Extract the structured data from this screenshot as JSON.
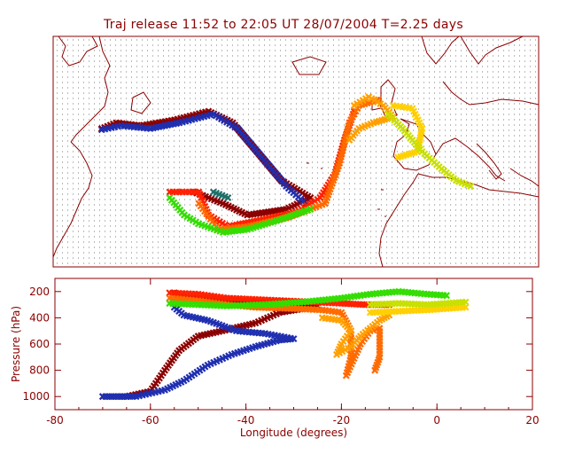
{
  "title": "Traj release 11:52 to 22:05 UT 28/07/2004     T=2.25 days",
  "chart_data": [
    {
      "type": "map",
      "title": "Traj release 11:52 to 22:05 UT 28/07/2004     T=2.25 days",
      "lon_range": [
        -80,
        20
      ],
      "grid": "dotted",
      "frame_color": "#8b0000",
      "coast_color": "#8b0000",
      "trajectories": [
        {
          "color": "#8b0000",
          "points": [
            [
              -70,
              44
            ],
            [
              -67,
              45
            ],
            [
              -62,
              44.5
            ],
            [
              -55,
              45.5
            ],
            [
              -48,
              47
            ],
            [
              -43,
              45
            ],
            [
              -38,
              40
            ],
            [
              -33,
              35
            ],
            [
              -27,
              32
            ],
            [
              -32,
              30
            ],
            [
              -40,
              29
            ],
            [
              -45,
              31
            ],
            [
              -51,
              33
            ]
          ]
        },
        {
          "color": "#1f2fb0",
          "points": [
            [
              -70,
              43.8
            ],
            [
              -66,
              44.5
            ],
            [
              -60,
              44
            ],
            [
              -54,
              45
            ],
            [
              -47,
              46.5
            ],
            [
              -42,
              44
            ],
            [
              -37,
              39
            ],
            [
              -32,
              34
            ],
            [
              -28,
              31
            ]
          ]
        },
        {
          "color": "#ff2000",
          "points": [
            [
              -56,
              33
            ],
            [
              -50,
              33
            ],
            [
              -48,
              29
            ],
            [
              -44,
              27
            ],
            [
              -38,
              28
            ],
            [
              -30,
              29.5
            ],
            [
              -25,
              32
            ],
            [
              -22,
              36
            ],
            [
              -20,
              42
            ],
            [
              -18,
              47
            ]
          ]
        },
        {
          "color": "#ff6a00",
          "points": [
            [
              -50,
              31
            ],
            [
              -46,
              26.5
            ],
            [
              -40,
              27
            ],
            [
              -32,
              28.5
            ],
            [
              -24,
              31
            ],
            [
              -21,
              38
            ],
            [
              -19,
              45
            ],
            [
              -17,
              48
            ],
            [
              -13,
              49
            ]
          ]
        },
        {
          "color": "#ffa000",
          "points": [
            [
              -18,
              48
            ],
            [
              -15,
              49.5
            ],
            [
              -12,
              48
            ],
            [
              -10,
              46
            ],
            [
              -14,
              45
            ],
            [
              -17,
              44
            ],
            [
              -19,
              42
            ]
          ]
        },
        {
          "color": "#ffd000",
          "points": [
            [
              -10,
              48
            ],
            [
              -6,
              47.5
            ],
            [
              -4,
              44
            ],
            [
              -5,
              40
            ],
            [
              -9,
              39
            ]
          ]
        },
        {
          "color": "#c8e000",
          "points": [
            [
              -11,
              46.5
            ],
            [
              -8,
              44
            ],
            [
              -4,
              40
            ],
            [
              0,
              37
            ],
            [
              3,
              35
            ],
            [
              6,
              34
            ]
          ]
        },
        {
          "color": "#33dd00",
          "points": [
            [
              -56,
              32
            ],
            [
              -53,
              29
            ],
            [
              -50,
              27.5
            ],
            [
              -45,
              26
            ],
            [
              -40,
              26.5
            ],
            [
              -34,
              28
            ],
            [
              -27,
              30
            ]
          ]
        },
        {
          "color": "#20706a",
          "points": [
            [
              -47,
              33
            ],
            [
              -44,
              32
            ]
          ]
        }
      ]
    },
    {
      "type": "scatter",
      "xlabel": "Longitude  (degrees)",
      "ylabel": "Pressure  (hPa)",
      "xlim": [
        -80,
        20
      ],
      "ylim": [
        1100,
        100
      ],
      "xticks": [
        -80,
        -60,
        -40,
        -20,
        0,
        20
      ],
      "yticks": [
        200,
        400,
        600,
        800,
        1000
      ],
      "series": [
        {
          "color": "#8b0000",
          "points": [
            [
              -70,
              1000
            ],
            [
              -65,
              1000
            ],
            [
              -60,
              960
            ],
            [
              -57,
              800
            ],
            [
              -54,
              650
            ],
            [
              -50,
              540
            ],
            [
              -45,
              500
            ],
            [
              -38,
              440
            ],
            [
              -33,
              360
            ],
            [
              -28,
              330
            ],
            [
              -25,
              310
            ],
            [
              -30,
              300
            ],
            [
              -40,
              280
            ],
            [
              -47,
              250
            ],
            [
              -53,
              240
            ],
            [
              -55,
              210
            ]
          ]
        },
        {
          "color": "#1f2fb0",
          "points": [
            [
              -70,
              1000
            ],
            [
              -63,
              1000
            ],
            [
              -57,
              950
            ],
            [
              -53,
              880
            ],
            [
              -48,
              760
            ],
            [
              -43,
              680
            ],
            [
              -38,
              620
            ],
            [
              -33,
              570
            ],
            [
              -30,
              560
            ],
            [
              -36,
              520
            ],
            [
              -42,
              500
            ],
            [
              -48,
              420
            ],
            [
              -53,
              380
            ],
            [
              -55,
              320
            ]
          ]
        },
        {
          "color": "#ff2000",
          "points": [
            [
              -56,
              210
            ],
            [
              -50,
              220
            ],
            [
              -44,
              250
            ],
            [
              -38,
              260
            ],
            [
              -32,
              270
            ],
            [
              -26,
              280
            ],
            [
              -20,
              290
            ],
            [
              -15,
              300
            ],
            [
              -10,
              300
            ]
          ]
        },
        {
          "color": "#ff6a00",
          "points": [
            [
              -56,
              250
            ],
            [
              -50,
              270
            ],
            [
              -44,
              300
            ],
            [
              -38,
              320
            ],
            [
              -30,
              330
            ],
            [
              -24,
              340
            ],
            [
              -20,
              360
            ],
            [
              -18,
              500
            ],
            [
              -18,
              700
            ],
            [
              -19,
              840
            ],
            [
              -16,
              600
            ],
            [
              -14,
              500
            ],
            [
              -12,
              480
            ],
            [
              -12,
              700
            ],
            [
              -13,
              800
            ]
          ]
        },
        {
          "color": "#ffa000",
          "points": [
            [
              -24,
              400
            ],
            [
              -20,
              420
            ],
            [
              -18,
              500
            ],
            [
              -20,
              600
            ],
            [
              -21,
              680
            ],
            [
              -18,
              620
            ],
            [
              -16,
              540
            ],
            [
              -14,
              480
            ],
            [
              -12,
              420
            ],
            [
              -10,
              380
            ]
          ]
        },
        {
          "color": "#ffd000",
          "points": [
            [
              -14,
              360
            ],
            [
              -8,
              350
            ],
            [
              -2,
              340
            ],
            [
              2,
              330
            ],
            [
              6,
              320
            ]
          ]
        },
        {
          "color": "#c8e000",
          "points": [
            [
              -14,
              300
            ],
            [
              -8,
              290
            ],
            [
              -2,
              300
            ],
            [
              2,
              290
            ],
            [
              6,
              280
            ]
          ]
        },
        {
          "color": "#33dd00",
          "points": [
            [
              -56,
              290
            ],
            [
              -50,
              300
            ],
            [
              -44,
              310
            ],
            [
              -36,
              300
            ],
            [
              -28,
              280
            ],
            [
              -20,
              250
            ],
            [
              -14,
              220
            ],
            [
              -8,
              200
            ],
            [
              -2,
              220
            ],
            [
              2,
              230
            ]
          ]
        }
      ]
    }
  ]
}
